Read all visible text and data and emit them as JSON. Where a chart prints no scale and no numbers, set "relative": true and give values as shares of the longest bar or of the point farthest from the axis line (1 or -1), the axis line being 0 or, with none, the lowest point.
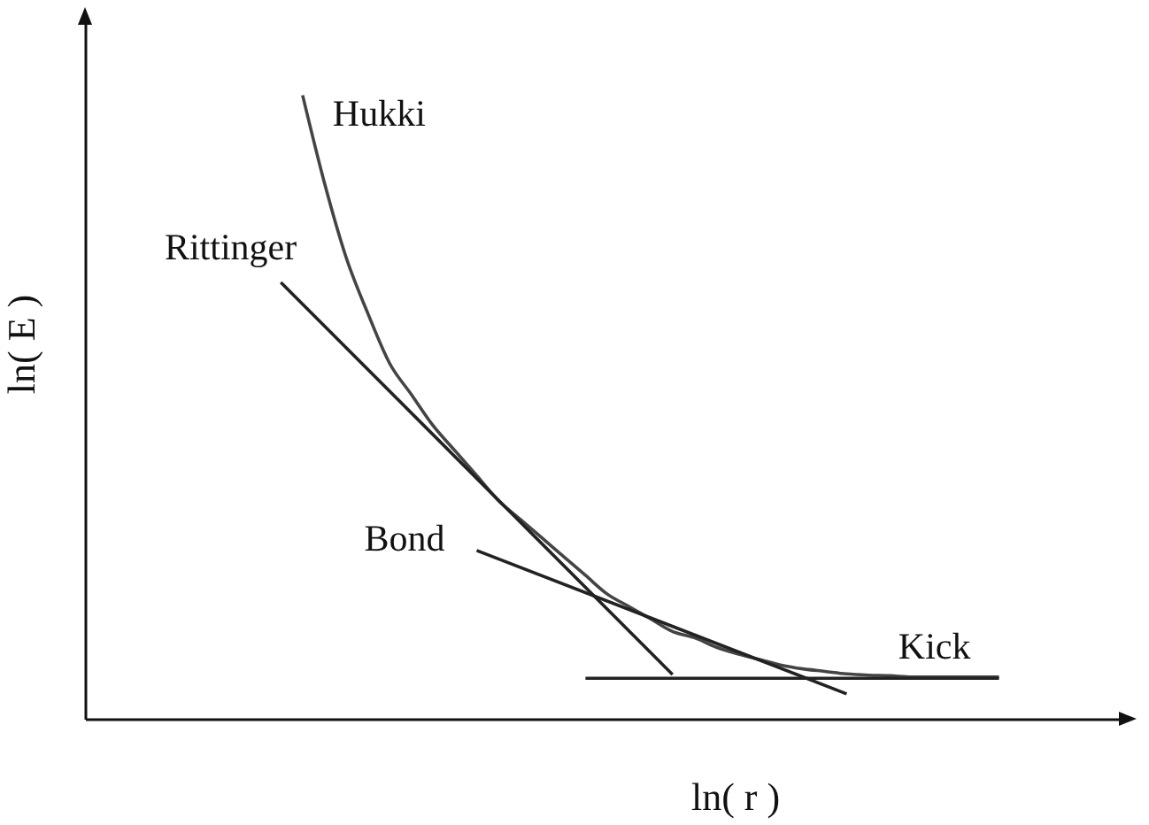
{
  "chart_data": {
    "type": "line",
    "relative": true,
    "xlabel": "ln( r )",
    "ylabel": "ln( E )",
    "tick_labels": false,
    "categories": [
      null,
      null,
      null,
      null,
      null,
      null,
      null,
      null,
      null,
      null,
      null,
      null,
      null,
      null,
      null,
      null,
      null,
      null,
      null,
      null,
      null,
      null,
      null,
      null,
      null,
      null,
      null,
      null,
      null,
      null,
      null,
      null,
      null,
      null,
      null,
      null,
      null,
      null,
      null,
      null,
      null,
      null,
      null,
      null,
      null,
      null,
      null,
      null,
      null
    ],
    "series": [
      {
        "name": "Hukki",
        "color": "#444444",
        "values": [
          null,
          null,
          null,
          null,
          null,
          null,
          null,
          null,
          null,
          null,
          1.0,
          0.86,
          0.74,
          0.65,
          0.57,
          0.52,
          0.47,
          0.43,
          0.39,
          0.35,
          0.32,
          0.29,
          0.26,
          0.23,
          0.2,
          0.18,
          0.16,
          0.14,
          0.13,
          0.115,
          0.104,
          0.095,
          0.086,
          0.08,
          0.076,
          0.072,
          0.07,
          0.069,
          0.067,
          0.067,
          0.067,
          0.067,
          0.067,
          null,
          null,
          null,
          null,
          null,
          null
        ]
      },
      {
        "name": "Rittinger",
        "color": "#222222",
        "values": [
          null,
          null,
          null,
          null,
          null,
          null,
          null,
          null,
          null,
          0.7,
          null,
          null,
          null,
          null,
          null,
          null,
          null,
          null,
          null,
          null,
          null,
          null,
          null,
          null,
          null,
          null,
          null,
          0.071,
          null,
          null,
          null,
          null,
          null,
          null,
          null,
          null,
          null,
          null,
          null,
          null,
          null,
          null,
          null,
          null,
          null,
          null,
          null,
          null,
          null
        ]
      },
      {
        "name": "Bond",
        "color": "#222222",
        "values": [
          null,
          null,
          null,
          null,
          null,
          null,
          null,
          null,
          null,
          null,
          null,
          null,
          null,
          null,
          null,
          null,
          null,
          null,
          0.27,
          null,
          null,
          null,
          null,
          null,
          null,
          null,
          null,
          null,
          null,
          null,
          null,
          null,
          null,
          null,
          null,
          0.04,
          null,
          null,
          null,
          null,
          null,
          null,
          null,
          null,
          null,
          null,
          null,
          null,
          null
        ]
      },
      {
        "name": "Kick",
        "color": "#222222",
        "values": [
          null,
          null,
          null,
          null,
          null,
          null,
          null,
          null,
          null,
          null,
          null,
          null,
          null,
          null,
          null,
          null,
          null,
          null,
          null,
          null,
          null,
          null,
          null,
          0.065,
          null,
          null,
          null,
          null,
          null,
          null,
          null,
          null,
          null,
          null,
          null,
          null,
          null,
          null,
          null,
          null,
          null,
          null,
          0.065,
          null,
          null,
          null,
          null,
          null,
          null
        ]
      }
    ]
  }
}
